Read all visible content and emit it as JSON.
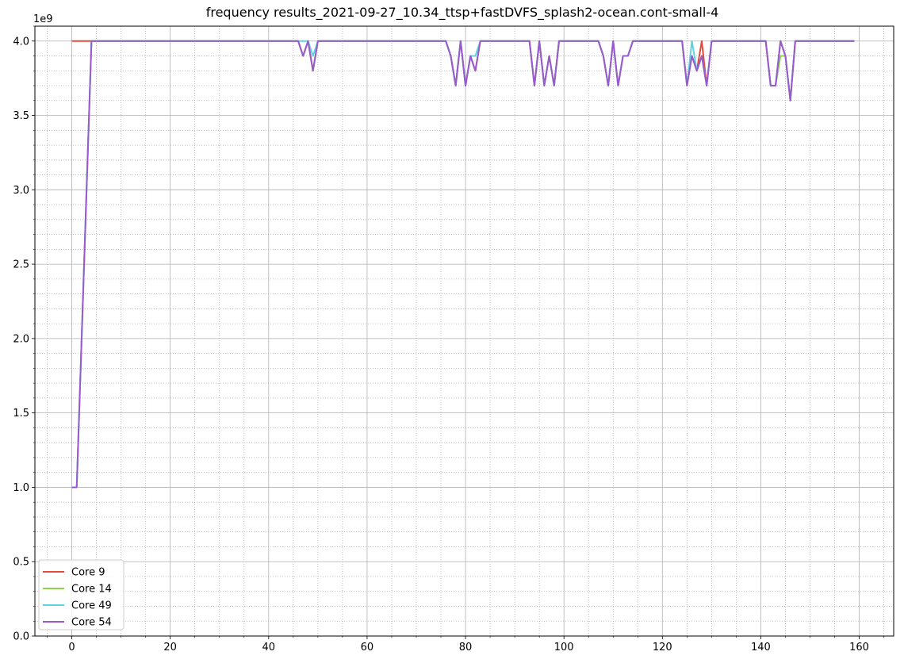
{
  "chart_data": {
    "type": "line",
    "title": "frequency results_2021-09-27_10.34_ttsp+fastDVFS_splash2-ocean.cont-small-4",
    "xlabel": "",
    "ylabel": "",
    "y_offset_text": "1e9",
    "xlim": [
      -7.5,
      167
    ],
    "ylim": [
      0,
      4.1
    ],
    "x_ticks": [
      0,
      20,
      40,
      60,
      80,
      100,
      120,
      140,
      160
    ],
    "x_tick_labels": [
      "0",
      "20",
      "40",
      "60",
      "80",
      "100",
      "120",
      "140",
      "160"
    ],
    "x_minor_step": 5,
    "y_ticks": [
      0,
      0.5,
      1.0,
      1.5,
      2.0,
      2.5,
      3.0,
      3.5,
      4.0
    ],
    "y_tick_labels": [
      "0.0",
      "0.5",
      "1.0",
      "1.5",
      "2.0",
      "2.5",
      "3.0",
      "3.5",
      "4.0"
    ],
    "y_minor_step": 0.1,
    "grid": {
      "major": true,
      "minor": true
    },
    "legend_position": "lower-left",
    "series": [
      {
        "name": "Core 9",
        "color": "#e24a3b",
        "points": [
          [
            0,
            4.0
          ],
          [
            46,
            4.0
          ],
          [
            47,
            3.9
          ],
          [
            48,
            4.0
          ],
          [
            49,
            3.8
          ],
          [
            50,
            4.0
          ],
          [
            76,
            4.0
          ],
          [
            77,
            3.9
          ],
          [
            78,
            3.7
          ],
          [
            79,
            4.0
          ],
          [
            80,
            3.7
          ],
          [
            81,
            3.9
          ],
          [
            82,
            3.8
          ],
          [
            83,
            4.0
          ],
          [
            93,
            4.0
          ],
          [
            94,
            3.7
          ],
          [
            95,
            4.0
          ],
          [
            96,
            3.7
          ],
          [
            97,
            3.9
          ],
          [
            98,
            3.7
          ],
          [
            99,
            4.0
          ],
          [
            107,
            4.0
          ],
          [
            108,
            3.9
          ],
          [
            109,
            3.7
          ],
          [
            110,
            4.0
          ],
          [
            111,
            3.7
          ],
          [
            112,
            3.9
          ],
          [
            113,
            3.9
          ],
          [
            114,
            4.0
          ],
          [
            124,
            4.0
          ],
          [
            125,
            3.7
          ],
          [
            126,
            3.9
          ],
          [
            127,
            3.8
          ],
          [
            128,
            4.0
          ],
          [
            129,
            3.7
          ],
          [
            130,
            4.0
          ],
          [
            141,
            4.0
          ],
          [
            142,
            3.7
          ],
          [
            143,
            3.7
          ],
          [
            144,
            4.0
          ],
          [
            145,
            3.9
          ],
          [
            146,
            3.6
          ],
          [
            147,
            4.0
          ],
          [
            159,
            4.0
          ]
        ]
      },
      {
        "name": "Core 14",
        "color": "#8fd14f",
        "points": [
          [
            0,
            1.0
          ],
          [
            1,
            1.0
          ],
          [
            4,
            4.0
          ],
          [
            46,
            4.0
          ],
          [
            47,
            3.9
          ],
          [
            48,
            4.0
          ],
          [
            49,
            3.8
          ],
          [
            50,
            4.0
          ],
          [
            76,
            4.0
          ],
          [
            77,
            3.9
          ],
          [
            78,
            3.7
          ],
          [
            79,
            4.0
          ],
          [
            80,
            3.7
          ],
          [
            81,
            3.9
          ],
          [
            82,
            3.8
          ],
          [
            83,
            4.0
          ],
          [
            93,
            4.0
          ],
          [
            94,
            3.7
          ],
          [
            95,
            4.0
          ],
          [
            96,
            3.7
          ],
          [
            97,
            3.9
          ],
          [
            98,
            3.7
          ],
          [
            99,
            4.0
          ],
          [
            107,
            4.0
          ],
          [
            108,
            3.9
          ],
          [
            109,
            3.7
          ],
          [
            110,
            4.0
          ],
          [
            111,
            3.7
          ],
          [
            112,
            3.9
          ],
          [
            113,
            3.9
          ],
          [
            114,
            4.0
          ],
          [
            124,
            4.0
          ],
          [
            125,
            3.7
          ],
          [
            126,
            3.9
          ],
          [
            127,
            3.8
          ],
          [
            128,
            3.9
          ],
          [
            129,
            3.7
          ],
          [
            130,
            4.0
          ],
          [
            141,
            4.0
          ],
          [
            142,
            3.7
          ],
          [
            143,
            3.7
          ],
          [
            144,
            3.9
          ],
          [
            145,
            3.9
          ],
          [
            146,
            3.6
          ],
          [
            147,
            4.0
          ],
          [
            159,
            4.0
          ]
        ]
      },
      {
        "name": "Core 49",
        "color": "#5fd3e0",
        "points": [
          [
            0,
            1.0
          ],
          [
            1,
            1.0
          ],
          [
            4,
            4.0
          ],
          [
            48,
            4.0
          ],
          [
            49,
            3.9
          ],
          [
            50,
            4.0
          ],
          [
            76,
            4.0
          ],
          [
            77,
            3.9
          ],
          [
            78,
            3.7
          ],
          [
            79,
            4.0
          ],
          [
            80,
            3.7
          ],
          [
            81,
            3.9
          ],
          [
            82,
            3.9
          ],
          [
            83,
            4.0
          ],
          [
            93,
            4.0
          ],
          [
            94,
            3.7
          ],
          [
            95,
            4.0
          ],
          [
            96,
            3.7
          ],
          [
            97,
            3.9
          ],
          [
            98,
            3.7
          ],
          [
            99,
            4.0
          ],
          [
            107,
            4.0
          ],
          [
            108,
            3.9
          ],
          [
            109,
            3.7
          ],
          [
            110,
            4.0
          ],
          [
            111,
            3.7
          ],
          [
            112,
            3.9
          ],
          [
            113,
            3.9
          ],
          [
            114,
            4.0
          ],
          [
            124,
            4.0
          ],
          [
            125,
            3.7
          ],
          [
            126,
            4.0
          ],
          [
            127,
            3.8
          ],
          [
            128,
            3.9
          ],
          [
            129,
            3.7
          ],
          [
            130,
            4.0
          ],
          [
            141,
            4.0
          ],
          [
            142,
            3.7
          ],
          [
            143,
            3.7
          ],
          [
            144,
            4.0
          ],
          [
            145,
            3.9
          ],
          [
            146,
            3.6
          ],
          [
            147,
            4.0
          ],
          [
            159,
            4.0
          ]
        ]
      },
      {
        "name": "Core 54",
        "color": "#9b59d0",
        "points": [
          [
            0,
            1.0
          ],
          [
            1,
            1.0
          ],
          [
            4,
            4.0
          ],
          [
            46,
            4.0
          ],
          [
            47,
            3.9
          ],
          [
            48,
            4.0
          ],
          [
            49,
            3.8
          ],
          [
            50,
            4.0
          ],
          [
            76,
            4.0
          ],
          [
            77,
            3.9
          ],
          [
            78,
            3.7
          ],
          [
            79,
            4.0
          ],
          [
            80,
            3.7
          ],
          [
            81,
            3.9
          ],
          [
            82,
            3.8
          ],
          [
            83,
            4.0
          ],
          [
            93,
            4.0
          ],
          [
            94,
            3.7
          ],
          [
            95,
            4.0
          ],
          [
            96,
            3.7
          ],
          [
            97,
            3.9
          ],
          [
            98,
            3.7
          ],
          [
            99,
            4.0
          ],
          [
            107,
            4.0
          ],
          [
            108,
            3.9
          ],
          [
            109,
            3.7
          ],
          [
            110,
            4.0
          ],
          [
            111,
            3.7
          ],
          [
            112,
            3.9
          ],
          [
            113,
            3.9
          ],
          [
            114,
            4.0
          ],
          [
            124,
            4.0
          ],
          [
            125,
            3.7
          ],
          [
            126,
            3.9
          ],
          [
            127,
            3.8
          ],
          [
            128,
            3.9
          ],
          [
            129,
            3.7
          ],
          [
            130,
            4.0
          ],
          [
            141,
            4.0
          ],
          [
            142,
            3.7
          ],
          [
            143,
            3.7
          ],
          [
            144,
            4.0
          ],
          [
            145,
            3.9
          ],
          [
            146,
            3.6
          ],
          [
            147,
            4.0
          ],
          [
            159,
            4.0
          ]
        ]
      }
    ]
  }
}
